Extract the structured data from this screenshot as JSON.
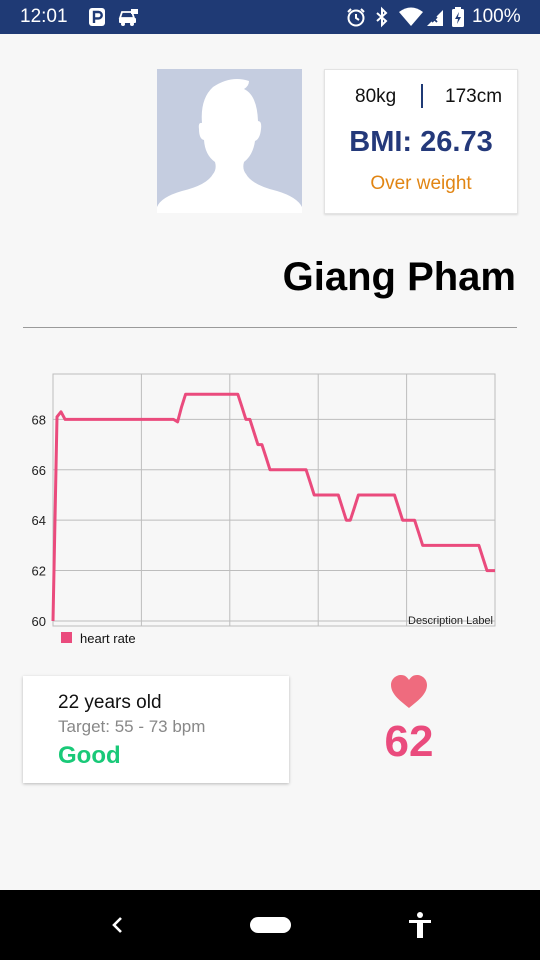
{
  "status_bar": {
    "time": "12:01",
    "battery": "100%"
  },
  "profile": {
    "weight": "80kg",
    "height": "173cm",
    "bmi_label": "BMI:",
    "bmi_value": "26.73",
    "bmi_status": "Over weight",
    "name": "Giang Pham"
  },
  "chart_data": {
    "type": "line",
    "series": [
      {
        "name": "heart rate",
        "color": "#ea4b7d",
        "points": [
          [
            0,
            60
          ],
          [
            1,
            68.1
          ],
          [
            2,
            68.3
          ],
          [
            3,
            68
          ],
          [
            4,
            68
          ],
          [
            5,
            68
          ],
          [
            6,
            68
          ],
          [
            7,
            68
          ],
          [
            8,
            68
          ],
          [
            9,
            68
          ],
          [
            10,
            68
          ],
          [
            11,
            68
          ],
          [
            12,
            68
          ],
          [
            13,
            68
          ],
          [
            14,
            68
          ],
          [
            15,
            68
          ],
          [
            16,
            68
          ],
          [
            17,
            68
          ],
          [
            18,
            68
          ],
          [
            19,
            68
          ],
          [
            20,
            68
          ],
          [
            21,
            68
          ],
          [
            22,
            68
          ],
          [
            23,
            68
          ],
          [
            24,
            68
          ],
          [
            25,
            68
          ],
          [
            26,
            68
          ],
          [
            27,
            68
          ],
          [
            28,
            68
          ],
          [
            29,
            68
          ],
          [
            30,
            68
          ],
          [
            31,
            67.9
          ],
          [
            32,
            68.5
          ],
          [
            33,
            69
          ],
          [
            34,
            69
          ],
          [
            35,
            69
          ],
          [
            36,
            69
          ],
          [
            37,
            69
          ],
          [
            38,
            69
          ],
          [
            39,
            69
          ],
          [
            40,
            69
          ],
          [
            41,
            69
          ],
          [
            42,
            69
          ],
          [
            43,
            69
          ],
          [
            44,
            69
          ],
          [
            45,
            69
          ],
          [
            46,
            69
          ],
          [
            47,
            68.5
          ],
          [
            48,
            68
          ],
          [
            49,
            68
          ],
          [
            50,
            67.5
          ],
          [
            51,
            67
          ],
          [
            52,
            67
          ],
          [
            53,
            66.5
          ],
          [
            54,
            66
          ],
          [
            55,
            66
          ],
          [
            56,
            66
          ],
          [
            57,
            66
          ],
          [
            58,
            66
          ],
          [
            59,
            66
          ],
          [
            60,
            66
          ],
          [
            61,
            66
          ],
          [
            62,
            66
          ],
          [
            63,
            66
          ],
          [
            64,
            65.5
          ],
          [
            65,
            65
          ],
          [
            66,
            65
          ],
          [
            67,
            65
          ],
          [
            68,
            65
          ],
          [
            69,
            65
          ],
          [
            70,
            65
          ],
          [
            71,
            65
          ],
          [
            72,
            64.5
          ],
          [
            73,
            64
          ],
          [
            74,
            64
          ],
          [
            75,
            64.5
          ],
          [
            76,
            65
          ],
          [
            77,
            65
          ],
          [
            78,
            65
          ],
          [
            79,
            65
          ],
          [
            80,
            65
          ],
          [
            81,
            65
          ],
          [
            82,
            65
          ],
          [
            83,
            65
          ],
          [
            84,
            65
          ],
          [
            85,
            65
          ],
          [
            86,
            64.5
          ],
          [
            87,
            64
          ],
          [
            88,
            64
          ],
          [
            89,
            64
          ],
          [
            90,
            64
          ],
          [
            91,
            63.5
          ],
          [
            92,
            63
          ],
          [
            93,
            63
          ],
          [
            94,
            63
          ],
          [
            95,
            63
          ],
          [
            96,
            63
          ],
          [
            97,
            63
          ],
          [
            98,
            63
          ],
          [
            99,
            63
          ],
          [
            100,
            63
          ],
          [
            101,
            63
          ],
          [
            102,
            63
          ],
          [
            103,
            63
          ],
          [
            104,
            63
          ],
          [
            105,
            63
          ],
          [
            106,
            63
          ],
          [
            107,
            62.5
          ],
          [
            108,
            62
          ],
          [
            109,
            62
          ],
          [
            110,
            62
          ]
        ]
      }
    ],
    "y_ticks": [
      "60",
      "62",
      "64",
      "66",
      "68"
    ],
    "ylim": [
      59.8,
      69.8
    ],
    "xlim": [
      0,
      110
    ],
    "x_gridlines": 5,
    "grid": true,
    "description_label": "Description Label",
    "legend": "heart rate",
    "legend_placement": "bottom-left"
  },
  "health": {
    "age": "22 years old",
    "target": "Target: 55 - 73 bpm",
    "status": "Good",
    "heart_rate": "62"
  },
  "colors": {
    "status_bar": "#1f3a75",
    "bmi": "#24397a",
    "bmi_status": "#e18513",
    "good": "#19c978",
    "heart_rate": "#ea4b7d"
  }
}
